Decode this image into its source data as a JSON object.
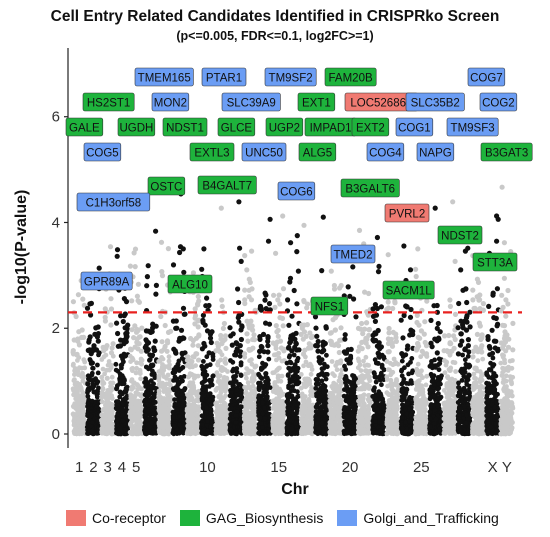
{
  "chart_data": {
    "type": "scatter",
    "title": "Cell Entry Related Candidates Identified in CRISPRko Screen",
    "subtitle": "(p<=0.005, FDR<=0.1, log2FC>=1)",
    "xlabel": "Chr",
    "ylabel": "-log10(P-value)",
    "ylim": [
      0,
      7
    ],
    "yticks": [
      "0",
      "2",
      "4",
      "6"
    ],
    "xticks": [
      {
        "chr": 1,
        "label": "1"
      },
      {
        "chr": 2,
        "label": "2"
      },
      {
        "chr": 3,
        "label": "3"
      },
      {
        "chr": 4,
        "label": "4"
      },
      {
        "chr": 5,
        "label": "5"
      },
      {
        "chr": 10,
        "label": "10"
      },
      {
        "chr": 15,
        "label": "15"
      },
      {
        "chr": 20,
        "label": "20"
      },
      {
        "chr": 25,
        "label": "25"
      },
      {
        "chr": "X",
        "label": "X"
      },
      {
        "chr": "Y",
        "label": "Y"
      }
    ],
    "threshold": 2.3,
    "categories": [
      {
        "name": "Co-receptor",
        "color": "#f07a72"
      },
      {
        "name": "GAG_Biosynthesis",
        "color": "#1eb33c"
      },
      {
        "name": "Golgi_and_Trafficking",
        "color": "#6b9df4"
      }
    ],
    "labeled_genes": [
      {
        "gene": "TMEM165",
        "category": "Golgi_and_Trafficking",
        "chr": 4,
        "y": 6.75
      },
      {
        "gene": "PTAR1",
        "category": "Golgi_and_Trafficking",
        "chr": 9,
        "y": 6.75
      },
      {
        "gene": "TM9SF2",
        "category": "Golgi_and_Trafficking",
        "chr": 13,
        "y": 6.75
      },
      {
        "gene": "FAM20B",
        "category": "GAG_Biosynthesis",
        "chr": 1,
        "y": 6.75
      },
      {
        "gene": "COG7",
        "category": "Golgi_and_Trafficking",
        "chr": 16,
        "y": 6.75
      },
      {
        "gene": "HS2ST1",
        "category": "GAG_Biosynthesis",
        "chr": 1,
        "y": 6.7
      },
      {
        "gene": "MON2",
        "category": "Golgi_and_Trafficking",
        "chr": 12,
        "y": 6.7
      },
      {
        "gene": "SLC39A9",
        "category": "Golgi_and_Trafficking",
        "chr": 14,
        "y": 6.7
      },
      {
        "gene": "EXT1",
        "category": "GAG_Biosynthesis",
        "chr": 8,
        "y": 6.7
      },
      {
        "gene": "LOC526863",
        "category": "Co-receptor",
        "chr": 18,
        "y": 6.7
      },
      {
        "gene": "SLC35B2",
        "category": "Golgi_and_Trafficking",
        "chr": 6,
        "y": 6.7
      },
      {
        "gene": "COG2",
        "category": "Golgi_and_Trafficking",
        "chr": 1,
        "y": 6.7
      },
      {
        "gene": "GALE",
        "category": "GAG_Biosynthesis",
        "chr": 1,
        "y": 6.7
      },
      {
        "gene": "UGDH",
        "category": "GAG_Biosynthesis",
        "chr": 4,
        "y": 6.7
      },
      {
        "gene": "NDST1",
        "category": "GAG_Biosynthesis",
        "chr": 5,
        "y": 6.7
      },
      {
        "gene": "GLCE",
        "category": "GAG_Biosynthesis",
        "chr": 7,
        "y": 6.7
      },
      {
        "gene": "UGP2",
        "category": "GAG_Biosynthesis",
        "chr": 11,
        "y": 6.7
      },
      {
        "gene": "IMPAD1",
        "category": "GAG_Biosynthesis",
        "chr": 14,
        "y": 6.7
      },
      {
        "gene": "EXT2",
        "category": "GAG_Biosynthesis",
        "chr": 15,
        "y": 6.7
      },
      {
        "gene": "COG1",
        "category": "Golgi_and_Trafficking",
        "chr": 19,
        "y": 6.7
      },
      {
        "gene": "TM9SF3",
        "category": "Golgi_and_Trafficking",
        "chr": 26,
        "y": 6.6
      },
      {
        "gene": "COG5",
        "category": "Golgi_and_Trafficking",
        "chr": 4,
        "y": 6.4
      },
      {
        "gene": "EXTL3",
        "category": "GAG_Biosynthesis",
        "chr": 7,
        "y": 6.3
      },
      {
        "gene": "UNC50",
        "category": "Golgi_and_Trafficking",
        "chr": 10,
        "y": 6.2
      },
      {
        "gene": "ALG5",
        "category": "GAG_Biosynthesis",
        "chr": 13,
        "y": 6.2
      },
      {
        "gene": "COG4",
        "category": "Golgi_and_Trafficking",
        "chr": 18,
        "y": 6.1
      },
      {
        "gene": "NAPG",
        "category": "Golgi_and_Trafficking",
        "chr": 24,
        "y": 6.3
      },
      {
        "gene": "B3GAT3",
        "category": "GAG_Biosynthesis",
        "chr": 29,
        "y": 6.2
      },
      {
        "gene": "OSTC",
        "category": "GAG_Biosynthesis",
        "chr": 6,
        "y": 5.3
      },
      {
        "gene": "B4GALT7",
        "category": "GAG_Biosynthesis",
        "chr": 8,
        "y": 5.4
      },
      {
        "gene": "COG6",
        "category": "Golgi_and_Trafficking",
        "chr": 12,
        "y": 5.2
      },
      {
        "gene": "B3GALT6",
        "category": "GAG_Biosynthesis",
        "chr": 16,
        "y": 5.2
      },
      {
        "gene": "C1H3orf58",
        "category": "Golgi_and_Trafficking",
        "chr": 1,
        "y": 4.7
      },
      {
        "gene": "PVRL2",
        "category": "Co-receptor",
        "chr": 18,
        "y": 4.8
      },
      {
        "gene": "NDST2",
        "category": "GAG_Biosynthesis",
        "chr": 28,
        "y": 4.5
      },
      {
        "gene": "TMED2",
        "category": "Golgi_and_Trafficking",
        "chr": 17,
        "y": 4.3
      },
      {
        "gene": "STT3A",
        "category": "GAG_Biosynthesis",
        "chr": 29,
        "y": 4.0
      },
      {
        "gene": "GPR89A",
        "category": "Golgi_and_Trafficking",
        "chr": 3,
        "y": 3.3
      },
      {
        "gene": "ALG10",
        "category": "GAG_Biosynthesis",
        "chr": 5,
        "y": 3.2
      },
      {
        "gene": "SACM1L",
        "category": "GAG_Biosynthesis",
        "chr": 25,
        "y": 3.1
      },
      {
        "gene": "NFS1",
        "category": "GAG_Biosynthesis",
        "chr": 13,
        "y": 2.8
      }
    ],
    "legend": {
      "placement": "bottom"
    }
  }
}
